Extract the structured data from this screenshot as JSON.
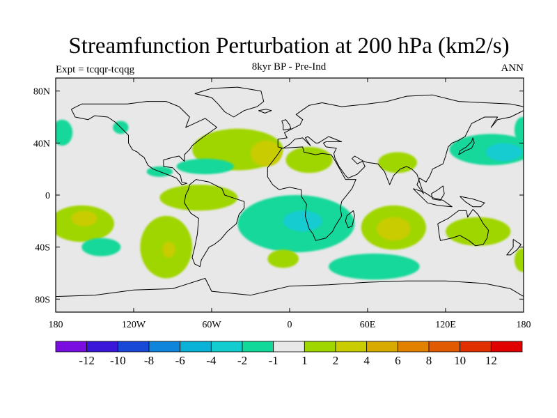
{
  "header": {
    "title": "Streamfunction Perturbation at 200 hPa (km2/s)",
    "experiment": "Expt = tcqqr-tcqqg",
    "period": "8kyr BP - Pre-Ind",
    "season": "ANN"
  },
  "map": {
    "lat_labels": [
      "80N",
      "40N",
      "0",
      "40S",
      "80S"
    ],
    "lat_values": [
      80,
      40,
      0,
      -40,
      -80
    ],
    "lon_labels": [
      "180",
      "120W",
      "60W",
      "0",
      "60E",
      "120E",
      "180"
    ],
    "lon_values": [
      -180,
      -120,
      -60,
      0,
      60,
      120,
      180
    ],
    "lon_range": [
      -180,
      180
    ],
    "lat_range": [
      -90,
      90
    ],
    "ocean_color": "#e8e8e8",
    "coast_color": "#000000"
  },
  "colorbar": {
    "colors": [
      "#7a0ee0",
      "#3a16d8",
      "#1848d6",
      "#0f86dc",
      "#0ab2d8",
      "#12ccd0",
      "#12d89a",
      "#e8e8e8",
      "#a0d600",
      "#c8cc00",
      "#d8aa00",
      "#e08200",
      "#e05a00",
      "#e03000",
      "#e00000"
    ],
    "labels": [
      "-12",
      "-10",
      "-8",
      "-6",
      "-4",
      "-2",
      "-1",
      "1",
      "2",
      "4",
      "6",
      "8",
      "10",
      "12"
    ]
  },
  "anomalies": [
    {
      "name": "n-pacific-east",
      "lon": -175,
      "lat": 48,
      "rlon": 8,
      "rlat": 10,
      "level": "-1"
    },
    {
      "name": "n-america-west",
      "lon": -130,
      "lat": 52,
      "rlon": 6,
      "rlat": 5,
      "level": "-1"
    },
    {
      "name": "n-atlantic-ring",
      "lon": -40,
      "lat": 35,
      "rlon": 35,
      "rlat": 16,
      "level": "1"
    },
    {
      "name": "n-atlantic-core",
      "lon": -18,
      "lat": 32,
      "rlon": 12,
      "rlat": 10,
      "level": "2"
    },
    {
      "name": "n-africa",
      "lon": 15,
      "lat": 27,
      "rlon": 18,
      "rlat": 10,
      "level": "1"
    },
    {
      "name": "caribbean-band",
      "lon": -65,
      "lat": 22,
      "rlon": 22,
      "rlat": 6,
      "level": "-1"
    },
    {
      "name": "east-pacific",
      "lon": -100,
      "lat": 18,
      "rlon": 10,
      "rlat": 4,
      "level": "-1"
    },
    {
      "name": "s-america-band",
      "lon": -70,
      "lat": -2,
      "rlon": 30,
      "rlat": 10,
      "level": "1"
    },
    {
      "name": "s-pacific-west",
      "lon": -160,
      "lat": -22,
      "rlon": 25,
      "rlat": 14,
      "level": "1"
    },
    {
      "name": "s-pacific-core",
      "lon": -158,
      "lat": -18,
      "rlon": 10,
      "rlat": 6,
      "level": "2"
    },
    {
      "name": "s-pacific-low",
      "lon": -145,
      "lat": -40,
      "rlon": 15,
      "rlat": 7,
      "level": "-1"
    },
    {
      "name": "s-pacific-east",
      "lon": -95,
      "lat": -40,
      "rlon": 20,
      "rlat": 24,
      "level": "1"
    },
    {
      "name": "s-pacific-east-core",
      "lon": -93,
      "lat": -42,
      "rlon": 5,
      "rlat": 6,
      "level": "2"
    },
    {
      "name": "s-atlantic-low",
      "lon": 5,
      "lat": -22,
      "rlon": 45,
      "rlat": 22,
      "level": "-1"
    },
    {
      "name": "s-atlantic-low-core",
      "lon": 10,
      "lat": -20,
      "rlon": 15,
      "rlat": 8,
      "level": "-2"
    },
    {
      "name": "s-atlantic-high",
      "lon": -5,
      "lat": -49,
      "rlon": 12,
      "rlat": 7,
      "level": "1"
    },
    {
      "name": "indian-ocean-high",
      "lon": 80,
      "lat": -25,
      "rlon": 25,
      "rlat": 17,
      "level": "1"
    },
    {
      "name": "indian-ocean-core",
      "lon": 80,
      "lat": -26,
      "rlon": 13,
      "rlat": 9,
      "level": "2"
    },
    {
      "name": "southern-ocean-low",
      "lon": 65,
      "lat": -55,
      "rlon": 35,
      "rlat": 10,
      "level": "-1"
    },
    {
      "name": "asia-high",
      "lon": 83,
      "lat": 25,
      "rlon": 15,
      "rlat": 8,
      "level": "1"
    },
    {
      "name": "australia-high",
      "lon": 145,
      "lat": -28,
      "rlon": 25,
      "rlat": 11,
      "level": "1"
    },
    {
      "name": "nw-pacific-low",
      "lon": 155,
      "lat": 35,
      "rlon": 32,
      "rlat": 12,
      "level": "-1"
    },
    {
      "name": "nw-pacific-core",
      "lon": 165,
      "lat": 33,
      "rlon": 14,
      "rlat": 7,
      "level": "-2"
    },
    {
      "name": "dateline-north",
      "lon": 179,
      "lat": 50,
      "rlon": 6,
      "rlat": 10,
      "level": "-1"
    },
    {
      "name": "dateline-south",
      "lon": 179,
      "lat": -50,
      "rlon": 6,
      "rlat": 9,
      "level": "1"
    }
  ],
  "coastlines": [
    {
      "name": "north-america",
      "points": [
        [
          -168,
          66
        ],
        [
          -160,
          70
        ],
        [
          -140,
          70
        ],
        [
          -125,
          70
        ],
        [
          -110,
          72
        ],
        [
          -95,
          72
        ],
        [
          -85,
          68
        ],
        [
          -80,
          63
        ],
        [
          -77,
          60
        ],
        [
          -80,
          52
        ],
        [
          -65,
          59
        ],
        [
          -56,
          52
        ],
        [
          -66,
          45
        ],
        [
          -70,
          42
        ],
        [
          -75,
          38
        ],
        [
          -77,
          35
        ],
        [
          -81,
          31
        ],
        [
          -81,
          26
        ],
        [
          -85,
          30
        ],
        [
          -90,
          29
        ],
        [
          -97,
          27
        ],
        [
          -97,
          22
        ],
        [
          -90,
          21
        ],
        [
          -87,
          18
        ],
        [
          -84,
          15
        ],
        [
          -83,
          10
        ],
        [
          -79,
          9
        ],
        [
          -83,
          8
        ],
        [
          -87,
          13
        ],
        [
          -92,
          15
        ],
        [
          -105,
          20
        ],
        [
          -109,
          23
        ],
        [
          -112,
          29
        ],
        [
          -115,
          31
        ],
        [
          -117,
          33
        ],
        [
          -121,
          35
        ],
        [
          -124,
          40
        ],
        [
          -124,
          46
        ],
        [
          -128,
          50
        ],
        [
          -134,
          56
        ],
        [
          -140,
          60
        ],
        [
          -150,
          61
        ],
        [
          -155,
          58
        ],
        [
          -165,
          60
        ],
        [
          -168,
          66
        ]
      ]
    },
    {
      "name": "greenland",
      "points": [
        [
          -73,
          78
        ],
        [
          -60,
          82
        ],
        [
          -40,
          83
        ],
        [
          -22,
          80
        ],
        [
          -20,
          72
        ],
        [
          -25,
          68
        ],
        [
          -35,
          65
        ],
        [
          -43,
          60
        ],
        [
          -50,
          64
        ],
        [
          -55,
          70
        ],
        [
          -60,
          75
        ],
        [
          -73,
          78
        ]
      ]
    },
    {
      "name": "south-america",
      "points": [
        [
          -77,
          8
        ],
        [
          -72,
          12
        ],
        [
          -62,
          10
        ],
        [
          -52,
          5
        ],
        [
          -50,
          0
        ],
        [
          -44,
          -2
        ],
        [
          -35,
          -5
        ],
        [
          -35,
          -10
        ],
        [
          -39,
          -15
        ],
        [
          -41,
          -22
        ],
        [
          -48,
          -28
        ],
        [
          -53,
          -34
        ],
        [
          -58,
          -38
        ],
        [
          -62,
          -40
        ],
        [
          -65,
          -45
        ],
        [
          -68,
          -50
        ],
        [
          -69,
          -55
        ],
        [
          -73,
          -53
        ],
        [
          -75,
          -48
        ],
        [
          -73,
          -40
        ],
        [
          -71,
          -30
        ],
        [
          -70,
          -18
        ],
        [
          -76,
          -14
        ],
        [
          -81,
          -6
        ],
        [
          -80,
          0
        ],
        [
          -78,
          4
        ],
        [
          -77,
          8
        ]
      ]
    },
    {
      "name": "eurasia",
      "points": [
        [
          -9,
          37
        ],
        [
          -9,
          43
        ],
        [
          -2,
          44
        ],
        [
          -4,
          48
        ],
        [
          2,
          51
        ],
        [
          8,
          54
        ],
        [
          10,
          58
        ],
        [
          5,
          62
        ],
        [
          15,
          69
        ],
        [
          25,
          71
        ],
        [
          40,
          68
        ],
        [
          60,
          70
        ],
        [
          75,
          72
        ],
        [
          90,
          76
        ],
        [
          110,
          77
        ],
        [
          130,
          72
        ],
        [
          150,
          71
        ],
        [
          170,
          70
        ],
        [
          180,
          68
        ],
        [
          180,
          65
        ],
        [
          170,
          60
        ],
        [
          160,
          58
        ],
        [
          155,
          52
        ],
        [
          160,
          60
        ],
        [
          150,
          60
        ],
        [
          140,
          55
        ],
        [
          135,
          45
        ],
        [
          130,
          42
        ],
        [
          125,
          40
        ],
        [
          122,
          37
        ],
        [
          120,
          30
        ],
        [
          118,
          24
        ],
        [
          110,
          20
        ],
        [
          108,
          15
        ],
        [
          105,
          10
        ],
        [
          100,
          13
        ],
        [
          98,
          8
        ],
        [
          103,
          1
        ],
        [
          98,
          16
        ],
        [
          94,
          20
        ],
        [
          90,
          22
        ],
        [
          85,
          20
        ],
        [
          80,
          15
        ],
        [
          77,
          8
        ],
        [
          73,
          18
        ],
        [
          68,
          24
        ],
        [
          60,
          25
        ],
        [
          57,
          26
        ],
        [
          50,
          30
        ],
        [
          48,
          28
        ],
        [
          52,
          24
        ],
        [
          56,
          26
        ],
        [
          58,
          22
        ],
        [
          52,
          16
        ],
        [
          45,
          13
        ],
        [
          43,
          15
        ],
        [
          38,
          22
        ],
        [
          35,
          28
        ],
        [
          34,
          32
        ],
        [
          36,
          36
        ],
        [
          28,
          37
        ],
        [
          26,
          40
        ],
        [
          28,
          41
        ],
        [
          40,
          41
        ],
        [
          30,
          45
        ],
        [
          22,
          40
        ],
        [
          20,
          40
        ],
        [
          14,
          45
        ],
        [
          12,
          44
        ],
        [
          16,
          38
        ],
        [
          10,
          44
        ],
        [
          4,
          43
        ],
        [
          0,
          39
        ],
        [
          -5,
          36
        ],
        [
          -9,
          37
        ]
      ]
    },
    {
      "name": "africa",
      "points": [
        [
          -17,
          21
        ],
        [
          -10,
          30
        ],
        [
          -6,
          36
        ],
        [
          10,
          37
        ],
        [
          11,
          33
        ],
        [
          20,
          31
        ],
        [
          25,
          32
        ],
        [
          32,
          31
        ],
        [
          34,
          28
        ],
        [
          38,
          21
        ],
        [
          43,
          12
        ],
        [
          51,
          12
        ],
        [
          48,
          5
        ],
        [
          40,
          -5
        ],
        [
          39,
          -10
        ],
        [
          40,
          -16
        ],
        [
          35,
          -24
        ],
        [
          33,
          -28
        ],
        [
          28,
          -33
        ],
        [
          20,
          -35
        ],
        [
          18,
          -30
        ],
        [
          15,
          -26
        ],
        [
          12,
          -16
        ],
        [
          13,
          -7
        ],
        [
          9,
          -1
        ],
        [
          9,
          4
        ],
        [
          5,
          5
        ],
        [
          0,
          6
        ],
        [
          -5,
          5
        ],
        [
          -8,
          4
        ],
        [
          -13,
          8
        ],
        [
          -17,
          14
        ],
        [
          -17,
          21
        ]
      ]
    },
    {
      "name": "madagascar",
      "points": [
        [
          44,
          -16
        ],
        [
          49,
          -12
        ],
        [
          50,
          -16
        ],
        [
          48,
          -24
        ],
        [
          45,
          -25
        ],
        [
          43,
          -20
        ],
        [
          44,
          -16
        ]
      ]
    },
    {
      "name": "australia",
      "points": [
        [
          114,
          -22
        ],
        [
          122,
          -18
        ],
        [
          130,
          -12
        ],
        [
          136,
          -12
        ],
        [
          137,
          -17
        ],
        [
          141,
          -11
        ],
        [
          145,
          -15
        ],
        [
          149,
          -22
        ],
        [
          153,
          -27
        ],
        [
          152,
          -33
        ],
        [
          149,
          -38
        ],
        [
          143,
          -39
        ],
        [
          138,
          -35
        ],
        [
          131,
          -31
        ],
        [
          125,
          -33
        ],
        [
          116,
          -35
        ],
        [
          115,
          -30
        ],
        [
          114,
          -22
        ]
      ]
    },
    {
      "name": "antarctica",
      "points": [
        [
          -180,
          -78
        ],
        [
          -150,
          -77
        ],
        [
          -120,
          -73
        ],
        [
          -90,
          -72
        ],
        [
          -65,
          -64
        ],
        [
          -60,
          -74
        ],
        [
          -30,
          -77
        ],
        [
          0,
          -70
        ],
        [
          30,
          -69
        ],
        [
          60,
          -67
        ],
        [
          90,
          -66
        ],
        [
          120,
          -66
        ],
        [
          150,
          -68
        ],
        [
          170,
          -72
        ],
        [
          180,
          -78
        ]
      ]
    },
    {
      "name": "uk",
      "points": [
        [
          -5,
          50
        ],
        [
          1,
          51
        ],
        [
          0,
          54
        ],
        [
          -3,
          58
        ],
        [
          -6,
          57
        ],
        [
          -5,
          54
        ],
        [
          -5,
          50
        ]
      ]
    },
    {
      "name": "japan",
      "points": [
        [
          130,
          31
        ],
        [
          135,
          34
        ],
        [
          140,
          36
        ],
        [
          142,
          40
        ],
        [
          141,
          44
        ],
        [
          140,
          41
        ],
        [
          136,
          37
        ],
        [
          131,
          34
        ],
        [
          130,
          31
        ]
      ]
    },
    {
      "name": "indonesia",
      "points": [
        [
          95,
          5
        ],
        [
          106,
          -6
        ],
        [
          114,
          -8
        ],
        [
          125,
          -9
        ],
        [
          118,
          -4
        ],
        [
          110,
          -2
        ],
        [
          104,
          2
        ],
        [
          95,
          5
        ]
      ]
    },
    {
      "name": "borneo",
      "points": [
        [
          109,
          1
        ],
        [
          114,
          4
        ],
        [
          118,
          7
        ],
        [
          119,
          1
        ],
        [
          116,
          -4
        ],
        [
          110,
          -3
        ],
        [
          109,
          1
        ]
      ]
    },
    {
      "name": "new-guinea",
      "points": [
        [
          131,
          -1
        ],
        [
          141,
          -3
        ],
        [
          150,
          -6
        ],
        [
          147,
          -9
        ],
        [
          141,
          -9
        ],
        [
          135,
          -5
        ],
        [
          131,
          -1
        ]
      ]
    },
    {
      "name": "new-zealand",
      "points": [
        [
          172,
          -34
        ],
        [
          178,
          -38
        ],
        [
          175,
          -42
        ],
        [
          170,
          -46
        ],
        [
          167,
          -46
        ],
        [
          172,
          -40
        ],
        [
          172,
          -34
        ]
      ]
    },
    {
      "name": "iceland",
      "points": [
        [
          -24,
          65
        ],
        [
          -18,
          66
        ],
        [
          -14,
          65
        ],
        [
          -19,
          63
        ],
        [
          -24,
          65
        ]
      ]
    }
  ]
}
